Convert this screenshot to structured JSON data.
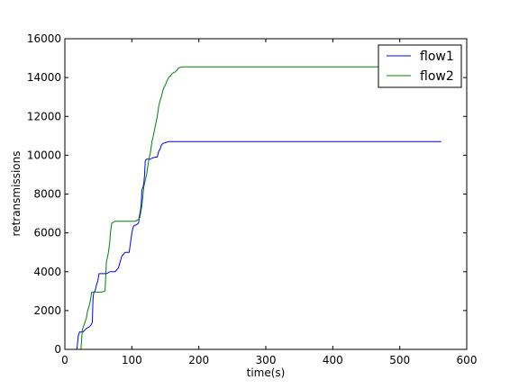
{
  "chart_data": {
    "type": "line",
    "title": "",
    "xlabel": "time(s)",
    "ylabel": "retransmissions",
    "xlim": [
      0,
      600
    ],
    "ylim": [
      0,
      16000
    ],
    "xticks": [
      0,
      100,
      200,
      300,
      400,
      500,
      600
    ],
    "yticks": [
      0,
      2000,
      4000,
      6000,
      8000,
      10000,
      12000,
      14000,
      16000
    ],
    "xtick_labels": [
      "0",
      "100",
      "200",
      "300",
      "400",
      "500",
      "600"
    ],
    "ytick_labels": [
      "0",
      "2000",
      "4000",
      "6000",
      "8000",
      "10000",
      "12000",
      "14000",
      "16000"
    ],
    "grid": false,
    "legend_position": "top-right",
    "series": [
      {
        "name": "flow1",
        "color": "#0000ff",
        "x": [
          18,
          20,
          22,
          24,
          27,
          30,
          33,
          36,
          39,
          41,
          42,
          43,
          45,
          47,
          49,
          51,
          60,
          62,
          65,
          67,
          70,
          72,
          75,
          80,
          85,
          90,
          92,
          94,
          96,
          98,
          100,
          102,
          104,
          106,
          110,
          111,
          112,
          113,
          114,
          115,
          117,
          118,
          119,
          120,
          122,
          125,
          128,
          130,
          135,
          138,
          140,
          142,
          144,
          146,
          150,
          155,
          160,
          200,
          300,
          400,
          500,
          562
        ],
        "y": [
          0,
          700,
          900,
          900,
          900,
          1000,
          1100,
          1150,
          1250,
          1400,
          2600,
          2900,
          3000,
          3300,
          3500,
          3900,
          3900,
          3900,
          3950,
          4000,
          4000,
          4000,
          4000,
          4200,
          4800,
          5000,
          5000,
          5000,
          5000,
          5500,
          6000,
          6300,
          6400,
          6400,
          6500,
          6800,
          7000,
          7200,
          7500,
          8200,
          8400,
          8600,
          9000,
          9700,
          9800,
          9800,
          9800,
          9850,
          9900,
          9900,
          10200,
          10300,
          10500,
          10600,
          10650,
          10700,
          10700,
          10700,
          10700,
          10700,
          10700,
          10700
        ]
      },
      {
        "name": "flow2",
        "color": "#008000",
        "x": [
          24,
          26,
          28,
          30,
          32,
          34,
          36,
          38,
          40,
          45,
          55,
          60,
          62,
          64,
          65,
          67,
          68,
          70,
          75,
          80,
          90,
          100,
          105,
          110,
          112,
          115,
          118,
          122,
          125,
          128,
          130,
          132,
          135,
          138,
          140,
          142,
          144,
          146,
          148,
          150,
          152,
          155,
          158,
          160,
          165,
          168,
          170,
          175,
          200,
          300,
          400,
          500,
          562
        ],
        "y": [
          0,
          1000,
          1200,
          1400,
          1600,
          2000,
          2200,
          2500,
          2950,
          2950,
          2950,
          3000,
          4500,
          4800,
          5000,
          5500,
          6000,
          6500,
          6600,
          6600,
          6600,
          6600,
          6600,
          6700,
          6800,
          7400,
          8400,
          9000,
          9700,
          10200,
          10700,
          11000,
          11500,
          12000,
          12500,
          12800,
          13000,
          13300,
          13500,
          13600,
          13800,
          14000,
          14100,
          14200,
          14300,
          14400,
          14500,
          14550,
          14550,
          14550,
          14550,
          14550,
          14550
        ]
      }
    ]
  }
}
